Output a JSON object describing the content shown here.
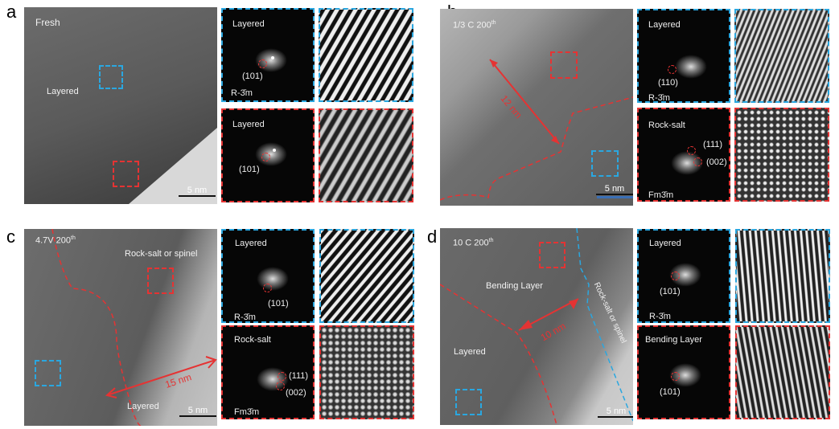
{
  "panels": {
    "a": {
      "label": "a",
      "title": "Fresh",
      "region": "Layered",
      "scale": "5 nm",
      "fft_top": {
        "phase": "Layered",
        "index": "(101)",
        "space_group": "R-3̄m"
      },
      "fft_bottom": {
        "phase": "Layered",
        "index": "(101)"
      }
    },
    "b": {
      "label": "b",
      "title": "1/3 C 200",
      "title_sup": "th",
      "distance": "12 nm",
      "scale": "5 nm",
      "fft_top": {
        "phase": "Layered",
        "index": "(110)",
        "space_group": "R-3̄m"
      },
      "fft_bottom": {
        "phase": "Rock-salt",
        "index1": "(111)",
        "index2": "(002)",
        "space_group": "Fm3̄m"
      }
    },
    "c": {
      "label": "c",
      "title": "4.7V 200",
      "title_sup": "th",
      "region_top": "Rock-salt or spinel",
      "region_bottom": "Layered",
      "distance": "15 nm",
      "scale": "5 nm",
      "fft_top": {
        "phase": "Layered",
        "index": "(101)",
        "space_group": "R-3̄m"
      },
      "fft_bottom": {
        "phase": "Rock-salt",
        "index1": "(111)",
        "index2": "(002)",
        "space_group": "Fm3̄m"
      }
    },
    "d": {
      "label": "d",
      "title": "10 C 200",
      "title_sup": "th",
      "region_mid": "Bending Layer",
      "region_bottom": "Layered",
      "region_edge": "Rock-salt or spinel",
      "distance": "10 nm",
      "scale": "5 nm",
      "fft_top": {
        "phase": "Layered",
        "index": "(101)",
        "space_group": "R-3̄m"
      },
      "fft_bottom": {
        "phase": "Bending Layer",
        "index": "(101)"
      }
    }
  },
  "colors": {
    "layered_box": "#2aa7e0",
    "rocksalt_box": "#e53333"
  }
}
